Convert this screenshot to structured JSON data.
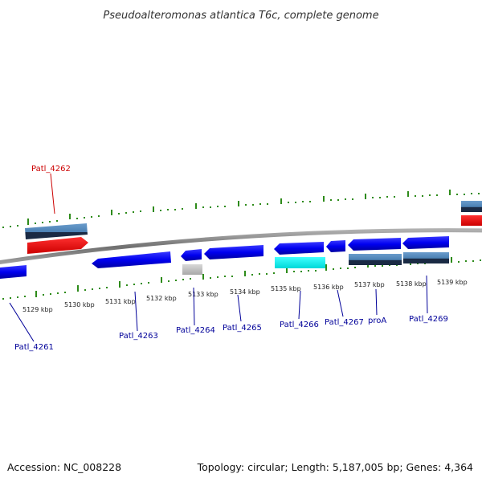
{
  "title": "Pseudoalteromonas atlantica T6c, complete genome",
  "footer": {
    "accession": "Accession: NC_008228",
    "summary": "Topology: circular; Length: 5,187,005 bp; Genes: 4,364"
  },
  "colors": {
    "forward_cds": "#0000ff",
    "gene_feature": "#4f86b8",
    "rrna": "#ff0000",
    "trna": "#00ffff",
    "misc": "#bfbfbf",
    "tick": "#2e8b1a",
    "backbone": "#808080",
    "label_red": "#cc0000",
    "label_blue": "#000099"
  },
  "kbp_ticks": [
    "5129 kbp",
    "5130 kbp",
    "5131 kbp",
    "5132 kbp",
    "5133 kbp",
    "5134 kbp",
    "5135 kbp",
    "5136 kbp",
    "5137 kbp",
    "5138 kbp",
    "5139 kbp"
  ],
  "gene_labels": [
    {
      "id": "Patl_4262",
      "text": "Patl_4262",
      "color": "red"
    },
    {
      "id": "Patl_4261",
      "text": "Patl_4261",
      "color": "blue"
    },
    {
      "id": "Patl_4263",
      "text": "Patl_4263",
      "color": "blue"
    },
    {
      "id": "Patl_4264",
      "text": "Patl_4264",
      "color": "blue"
    },
    {
      "id": "Patl_4265",
      "text": "Patl_4265",
      "color": "blue"
    },
    {
      "id": "Patl_4266",
      "text": "Patl_4266",
      "color": "blue"
    },
    {
      "id": "Patl_4267",
      "text": "Patl_4267",
      "color": "blue"
    },
    {
      "id": "proA",
      "text": "proA",
      "color": "blue"
    },
    {
      "id": "Patl_4269",
      "text": "Patl_4269",
      "color": "blue"
    }
  ]
}
